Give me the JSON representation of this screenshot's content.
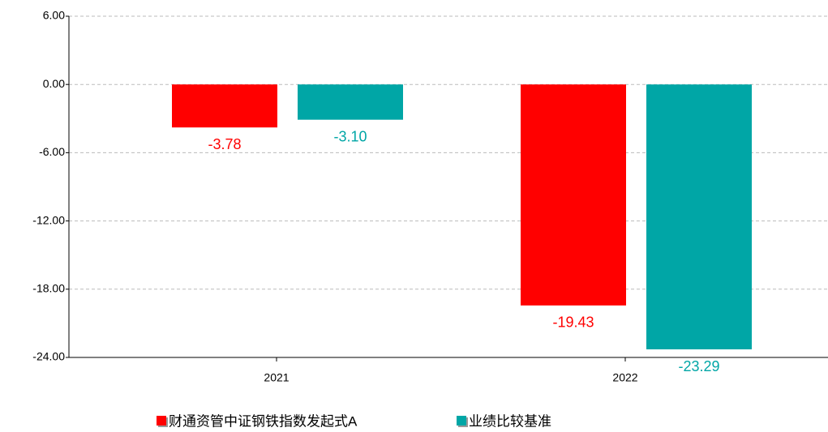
{
  "chart_data": {
    "type": "bar",
    "categories": [
      "2021",
      "2022"
    ],
    "series": [
      {
        "name": "财通资管中证钢铁指数发起式A",
        "color": "#ff0000",
        "values": [
          -3.78,
          -19.43
        ],
        "value_labels": [
          "-3.78",
          "-19.43"
        ]
      },
      {
        "name": "业绩比较基准",
        "color": "#00a6a6",
        "values": [
          -3.1,
          -23.29
        ],
        "value_labels": [
          "-3.10",
          "-23.29"
        ]
      }
    ],
    "ylim": [
      -24,
      6
    ],
    "yticks": [
      {
        "value": 6,
        "label": "6.00"
      },
      {
        "value": 0,
        "label": "0.00"
      },
      {
        "value": -6,
        "label": "-6.00"
      },
      {
        "value": -12,
        "label": "-12.00"
      },
      {
        "value": -18,
        "label": "-18.00"
      },
      {
        "value": -24,
        "label": "-24.00"
      }
    ],
    "grid": true,
    "legend": "bottom"
  }
}
